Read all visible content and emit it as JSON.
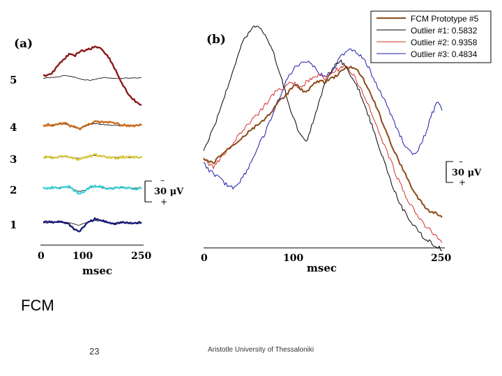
{
  "footer": {
    "title": "FCM",
    "page_number": "23",
    "organization": "Aristotle University of Thessaloniki"
  },
  "chart_data": [
    {
      "type": "line",
      "panel_label": "(a)",
      "xlabel": "msec",
      "x_ticks": [
        "0",
        "100",
        "250"
      ],
      "xlim": [
        0,
        250
      ],
      "scale_bar": {
        "value_label": "30 μV",
        "minus": "–",
        "plus": "+"
      },
      "rows": [
        {
          "label": "5",
          "color": "#8B1A1A",
          "signal": [
            3,
            5,
            10,
            22,
            30,
            38,
            35,
            42,
            44,
            46,
            50,
            48,
            40,
            28,
            12,
            -5,
            -20,
            -32,
            -38,
            -44
          ],
          "reference": [
            0,
            0,
            1,
            2,
            4,
            3,
            1,
            -1,
            -3,
            -4,
            -2,
            0,
            1,
            0,
            -1,
            -1,
            0,
            0,
            0,
            0
          ]
        },
        {
          "label": "4",
          "color": "#CC6A1A",
          "signal": [
            0,
            1,
            0,
            2,
            4,
            0,
            -3,
            -6,
            -2,
            3,
            6,
            5,
            4,
            5,
            3,
            1,
            0,
            -1,
            0,
            1
          ],
          "reference": [
            0,
            0,
            1,
            2,
            3,
            0,
            -3,
            -5,
            -2,
            1,
            3,
            2,
            1,
            0,
            0,
            -1,
            0,
            0,
            0,
            0
          ]
        },
        {
          "label": "3",
          "color": "#D9C840",
          "signal": [
            0,
            1,
            -1,
            0,
            2,
            1,
            -2,
            -3,
            0,
            2,
            4,
            3,
            1,
            0,
            -1,
            0,
            1,
            0,
            0,
            1
          ],
          "reference": [
            0,
            0,
            0,
            1,
            1,
            0,
            -1,
            -2,
            0,
            2,
            3,
            2,
            1,
            0,
            0,
            0,
            0,
            0,
            0,
            0
          ]
        },
        {
          "label": "2",
          "color": "#3FD0D8",
          "signal": [
            0,
            0,
            1,
            0,
            2,
            2,
            -4,
            -10,
            -6,
            1,
            3,
            2,
            0,
            -1,
            0,
            1,
            0,
            -1,
            -1,
            0
          ],
          "reference": [
            0,
            0,
            0,
            1,
            2,
            1,
            -3,
            -6,
            -3,
            1,
            2,
            1,
            0,
            0,
            0,
            0,
            0,
            0,
            0,
            0
          ]
        },
        {
          "label": "1",
          "color": "#1A1A7A",
          "signal": [
            1,
            2,
            0,
            3,
            1,
            -2,
            -10,
            -14,
            -4,
            2,
            6,
            4,
            2,
            0,
            -1,
            1,
            0,
            -1,
            0,
            1
          ],
          "reference": [
            0,
            0,
            0,
            1,
            1,
            0,
            -2,
            -4,
            -1,
            2,
            4,
            3,
            1,
            0,
            0,
            0,
            0,
            0,
            0,
            0
          ]
        }
      ]
    },
    {
      "type": "line",
      "panel_label": "(b)",
      "xlabel": "msec",
      "x_ticks": [
        "0",
        "100",
        "250"
      ],
      "xlim": [
        0,
        250
      ],
      "scale_bar": {
        "value_label": "30 μV",
        "minus": "–",
        "plus": "+"
      },
      "legend_position": "top-right",
      "series": [
        {
          "name": "FCM Prototype #5",
          "color": "#8B4A1A",
          "width": 2,
          "values": [
            -20,
            -22,
            -24,
            -18,
            -14,
            -10,
            -6,
            -2,
            2,
            6,
            10,
            14,
            18,
            22,
            28,
            34,
            40,
            44,
            50,
            54,
            50,
            46,
            52,
            56,
            58,
            56,
            60,
            62,
            66,
            70,
            72,
            70,
            66,
            58,
            48,
            38,
            26,
            14,
            2,
            -10,
            -20,
            -30,
            -40,
            -50,
            -58,
            -64,
            -70,
            -72,
            -74,
            -78
          ]
        },
        {
          "name": "Outlier #1: 0.5832",
          "color": "#000000",
          "width": 1,
          "values": [
            -10,
            0,
            10,
            24,
            38,
            52,
            68,
            82,
            96,
            104,
            110,
            112,
            108,
            100,
            90,
            76,
            60,
            44,
            28,
            14,
            4,
            -4,
            10,
            26,
            42,
            56,
            66,
            74,
            78,
            74,
            66,
            58,
            48,
            36,
            22,
            8,
            -6,
            -20,
            -34,
            -48,
            -60,
            -70,
            -78,
            -84,
            -90,
            -96,
            -100,
            -104,
            -106,
            -110
          ]
        },
        {
          "name": "Outlier #2: 0.9358",
          "color": "#D0302A",
          "width": 1,
          "values": [
            -18,
            -24,
            -28,
            -22,
            -16,
            -10,
            -4,
            2,
            8,
            14,
            20,
            24,
            30,
            36,
            42,
            48,
            50,
            54,
            58,
            54,
            50,
            56,
            60,
            62,
            64,
            60,
            64,
            68,
            70,
            72,
            68,
            62,
            52,
            42,
            32,
            20,
            8,
            -4,
            -16,
            -28,
            -40,
            -50,
            -60,
            -68,
            -76,
            -82,
            -88,
            -92,
            -96,
            -102
          ]
        },
        {
          "name": "Outlier #3: 0.4834",
          "color": "#1A1AAA",
          "width": 1,
          "values": [
            -24,
            -30,
            -34,
            -38,
            -42,
            -46,
            -48,
            -44,
            -38,
            -30,
            -20,
            -10,
            0,
            10,
            22,
            34,
            46,
            58,
            66,
            72,
            76,
            78,
            76,
            70,
            64,
            62,
            66,
            72,
            80,
            86,
            90,
            88,
            84,
            78,
            70,
            60,
            50,
            40,
            30,
            18,
            8,
            -2,
            -10,
            -16,
            -12,
            -2,
            12,
            26,
            36,
            30
          ]
        }
      ]
    }
  ]
}
